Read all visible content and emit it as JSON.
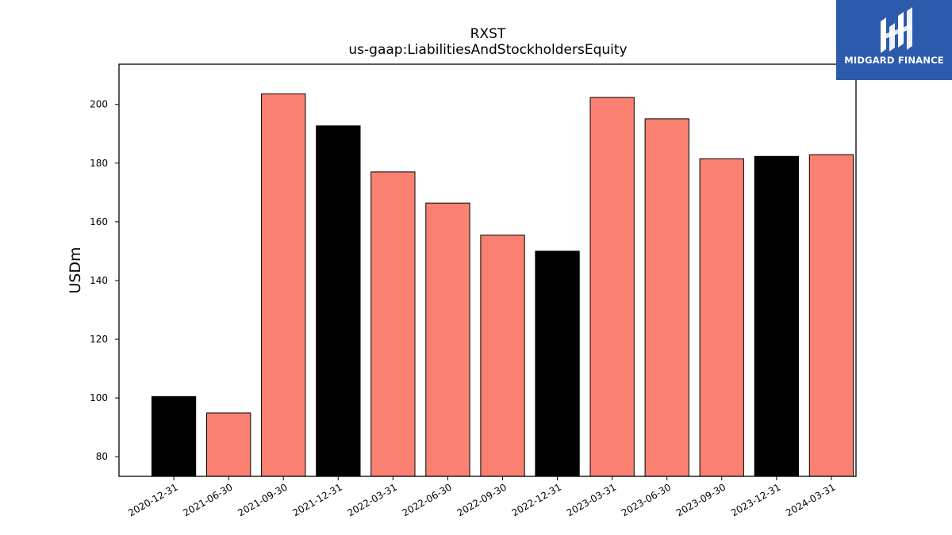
{
  "chart_data": {
    "type": "bar",
    "title": "RXST",
    "subtitle": "us-gaap:LiabilitiesAndStockholdersEquity",
    "xlabel": "",
    "ylabel": "USDm",
    "categories": [
      "2020-12-31",
      "2021-06-30",
      "2021-09-30",
      "2021-12-31",
      "2022-03-31",
      "2022-06-30",
      "2022-09-30",
      "2022-12-31",
      "2023-03-31",
      "2023-06-30",
      "2023-09-30",
      "2023-12-31",
      "2024-03-31"
    ],
    "values": [
      100.5,
      94.9,
      203.6,
      192.7,
      177.0,
      166.4,
      155.5,
      150.0,
      202.4,
      195.1,
      181.5,
      182.3,
      182.9
    ],
    "bar_colors": [
      "#000000",
      "#fa8072",
      "#fa8072",
      "#000000",
      "#fa8072",
      "#fa8072",
      "#fa8072",
      "#000000",
      "#fa8072",
      "#fa8072",
      "#fa8072",
      "#000000",
      "#fa8072"
    ],
    "yticks": [
      80,
      100,
      120,
      140,
      160,
      180,
      200
    ],
    "ylim": [
      73.3,
      213.7
    ],
    "grid": false
  },
  "brand": {
    "name": "MIDGARD FINANCE",
    "bg_color": "#2c5aad"
  }
}
